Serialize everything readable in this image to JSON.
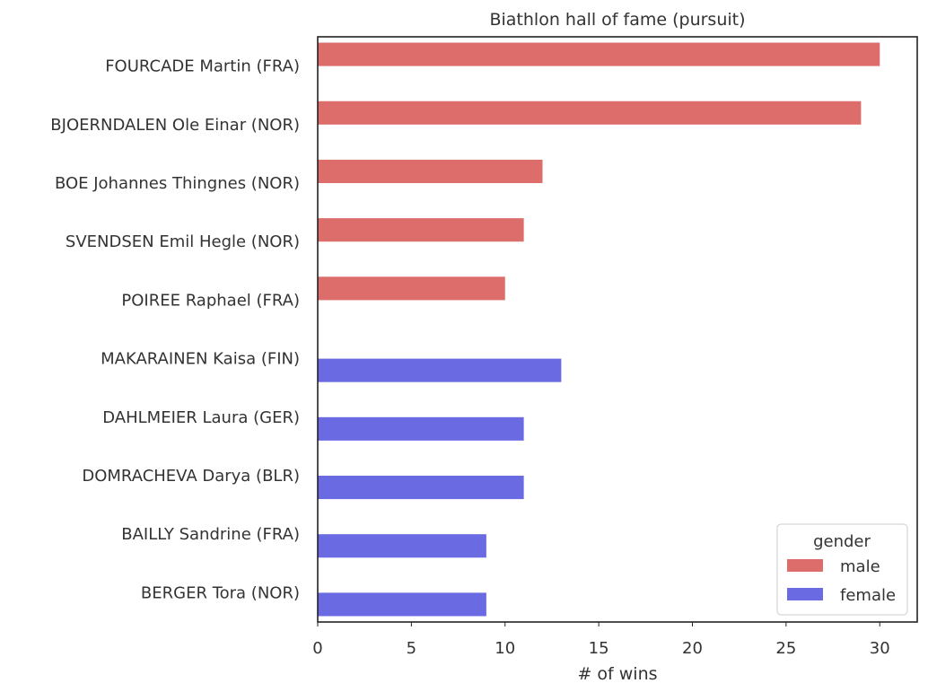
{
  "chart_data": {
    "type": "bar",
    "orientation": "horizontal",
    "title": "Biathlon hall of fame (pursuit)",
    "xlabel": "# of wins",
    "ylabel": "",
    "xlim": [
      0,
      32
    ],
    "xticks": [
      0,
      5,
      10,
      15,
      20,
      25,
      30
    ],
    "grid": false,
    "legend": {
      "title": "gender",
      "position": "bottom-right"
    },
    "categories": [
      "FOURCADE Martin (FRA)",
      "BJOERNDALEN Ole Einar (NOR)",
      "BOE Johannes Thingnes (NOR)",
      "SVENDSEN Emil Hegle (NOR)",
      "POIREE Raphael (FRA)",
      "MAKARAINEN Kaisa (FIN)",
      "DAHLMEIER Laura (GER)",
      "DOMRACHEVA Darya (BLR)",
      "BAILLY Sandrine (FRA)",
      "BERGER Tora (NOR)"
    ],
    "series": [
      {
        "name": "male",
        "color": "#dd6d6b",
        "values": [
          30,
          29,
          12,
          11,
          10,
          null,
          null,
          null,
          null,
          null
        ]
      },
      {
        "name": "female",
        "color": "#6a6be3",
        "values": [
          null,
          null,
          null,
          null,
          null,
          13,
          11,
          11,
          9,
          9
        ]
      }
    ]
  }
}
